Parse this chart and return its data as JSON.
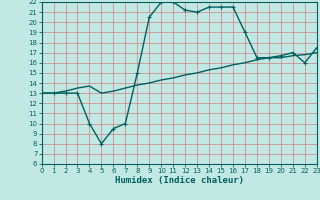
{
  "title": "",
  "xlabel": "Humidex (Indice chaleur)",
  "bg_color": "#c2e8e4",
  "grid_color": "#b0d8d4",
  "line_color": "#006060",
  "x_min": 0,
  "x_max": 23,
  "y_min": 6,
  "y_max": 22,
  "x_ticks": [
    0,
    1,
    2,
    3,
    4,
    5,
    6,
    7,
    8,
    9,
    10,
    11,
    12,
    13,
    14,
    15,
    16,
    17,
    18,
    19,
    20,
    21,
    22,
    23
  ],
  "y_ticks": [
    6,
    7,
    8,
    9,
    10,
    11,
    12,
    13,
    14,
    15,
    16,
    17,
    18,
    19,
    20,
    21,
    22
  ],
  "curve1_x": [
    0,
    1,
    2,
    3,
    4,
    5,
    6,
    7,
    8,
    9,
    10,
    11,
    12,
    13,
    14,
    15,
    16,
    17,
    18,
    19,
    20,
    21,
    22,
    23
  ],
  "curve1_y": [
    13.0,
    13.0,
    13.0,
    13.0,
    10.0,
    8.0,
    9.5,
    10.0,
    15.0,
    20.5,
    22.0,
    22.0,
    21.2,
    21.0,
    21.5,
    21.5,
    21.5,
    19.0,
    16.5,
    16.5,
    16.7,
    17.0,
    16.0,
    17.5
  ],
  "curve2_x": [
    0,
    1,
    2,
    3,
    4,
    5,
    6,
    7,
    8,
    9,
    10,
    11,
    12,
    13,
    14,
    15,
    16,
    17,
    18,
    19,
    20,
    21,
    22,
    23
  ],
  "curve2_y": [
    13.0,
    13.0,
    13.2,
    13.5,
    13.7,
    13.0,
    13.2,
    13.5,
    13.8,
    14.0,
    14.3,
    14.5,
    14.8,
    15.0,
    15.3,
    15.5,
    15.8,
    16.0,
    16.3,
    16.5,
    16.5,
    16.7,
    16.8,
    17.0
  ],
  "marker_size": 3.0,
  "linewidth": 1.0,
  "tick_fontsize": 5.0,
  "xlabel_fontsize": 6.5
}
